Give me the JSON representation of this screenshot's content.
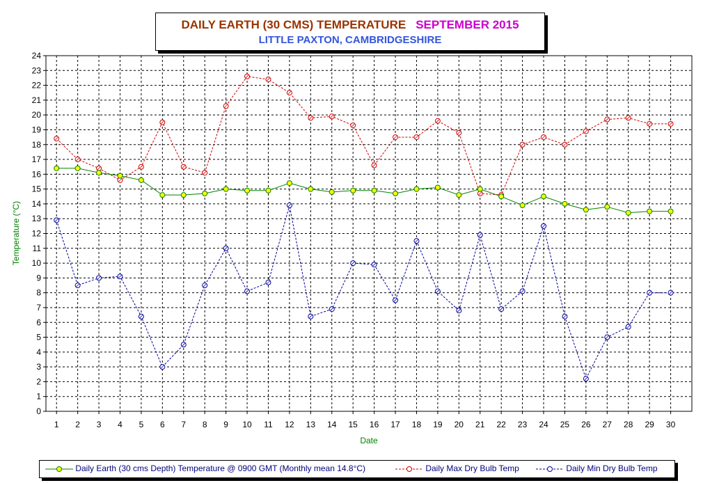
{
  "title": "DAILY EARTH (30 CMS) TEMPERATURE",
  "period": "SEPTEMBER 2015",
  "subtitle": "LITTLE PAXTON, CAMBRIDGESHIRE",
  "colors": {
    "title": "#993300",
    "period": "#cc00cc",
    "subtitle": "#3355dd",
    "axis_label": "#008000",
    "earth_line": "#008000",
    "earth_marker": "#ffff00",
    "max_series": "#cc0000",
    "min_series": "#000099",
    "grid": "#000000"
  },
  "chart_data": {
    "type": "line",
    "xlabel": "Date",
    "ylabel": "Temperature (°C)",
    "ylim": [
      0,
      24
    ],
    "yticks": [
      "0",
      "1",
      "2",
      "3",
      "4",
      "5",
      "6",
      "7",
      "8",
      "9",
      "10",
      "11",
      "12",
      "13",
      "14",
      "15",
      "16",
      "17",
      "18",
      "19",
      "20",
      "21",
      "22",
      "23",
      "24"
    ],
    "x": [
      "1",
      "2",
      "3",
      "4",
      "5",
      "6",
      "7",
      "8",
      "9",
      "10",
      "11",
      "12",
      "13",
      "14",
      "15",
      "16",
      "17",
      "18",
      "19",
      "20",
      "21",
      "22",
      "23",
      "24",
      "25",
      "26",
      "27",
      "28",
      "29",
      "30"
    ],
    "grid": true,
    "legend_position": "bottom",
    "series": [
      {
        "name": "Daily Earth (30 cms Depth) Temperature @ 0900 GMT (Monthly mean 14.8°C)",
        "style": "solid",
        "values": [
          16.4,
          16.4,
          16.1,
          15.9,
          15.6,
          14.6,
          14.6,
          14.7,
          15.0,
          14.9,
          14.9,
          15.4,
          15.0,
          14.8,
          14.9,
          14.9,
          14.7,
          15.0,
          15.1,
          14.6,
          15.0,
          14.5,
          13.9,
          14.5,
          14.0,
          13.6,
          13.8,
          13.4,
          13.5,
          13.5
        ]
      },
      {
        "name": "Daily Max Dry Bulb Temp",
        "style": "dashed",
        "values": [
          18.4,
          17.0,
          16.4,
          15.6,
          16.5,
          19.5,
          16.5,
          16.1,
          20.6,
          22.6,
          22.4,
          21.5,
          19.8,
          19.9,
          19.3,
          16.6,
          18.5,
          18.5,
          19.6,
          18.8,
          14.7,
          14.6,
          18.0,
          18.5,
          18.0,
          18.9,
          19.7,
          19.8,
          19.4,
          19.4
        ]
      },
      {
        "name": "Daily Min Dry Bulb Temp",
        "style": "dashed",
        "values": [
          12.9,
          8.5,
          9.0,
          9.1,
          6.4,
          3.0,
          4.5,
          8.5,
          11.0,
          8.1,
          8.7,
          13.9,
          6.4,
          6.9,
          10.0,
          9.9,
          7.5,
          11.5,
          8.1,
          6.8,
          11.9,
          6.9,
          8.1,
          12.5,
          6.4,
          2.2,
          5.0,
          5.7,
          8.0,
          8.0
        ]
      }
    ]
  }
}
